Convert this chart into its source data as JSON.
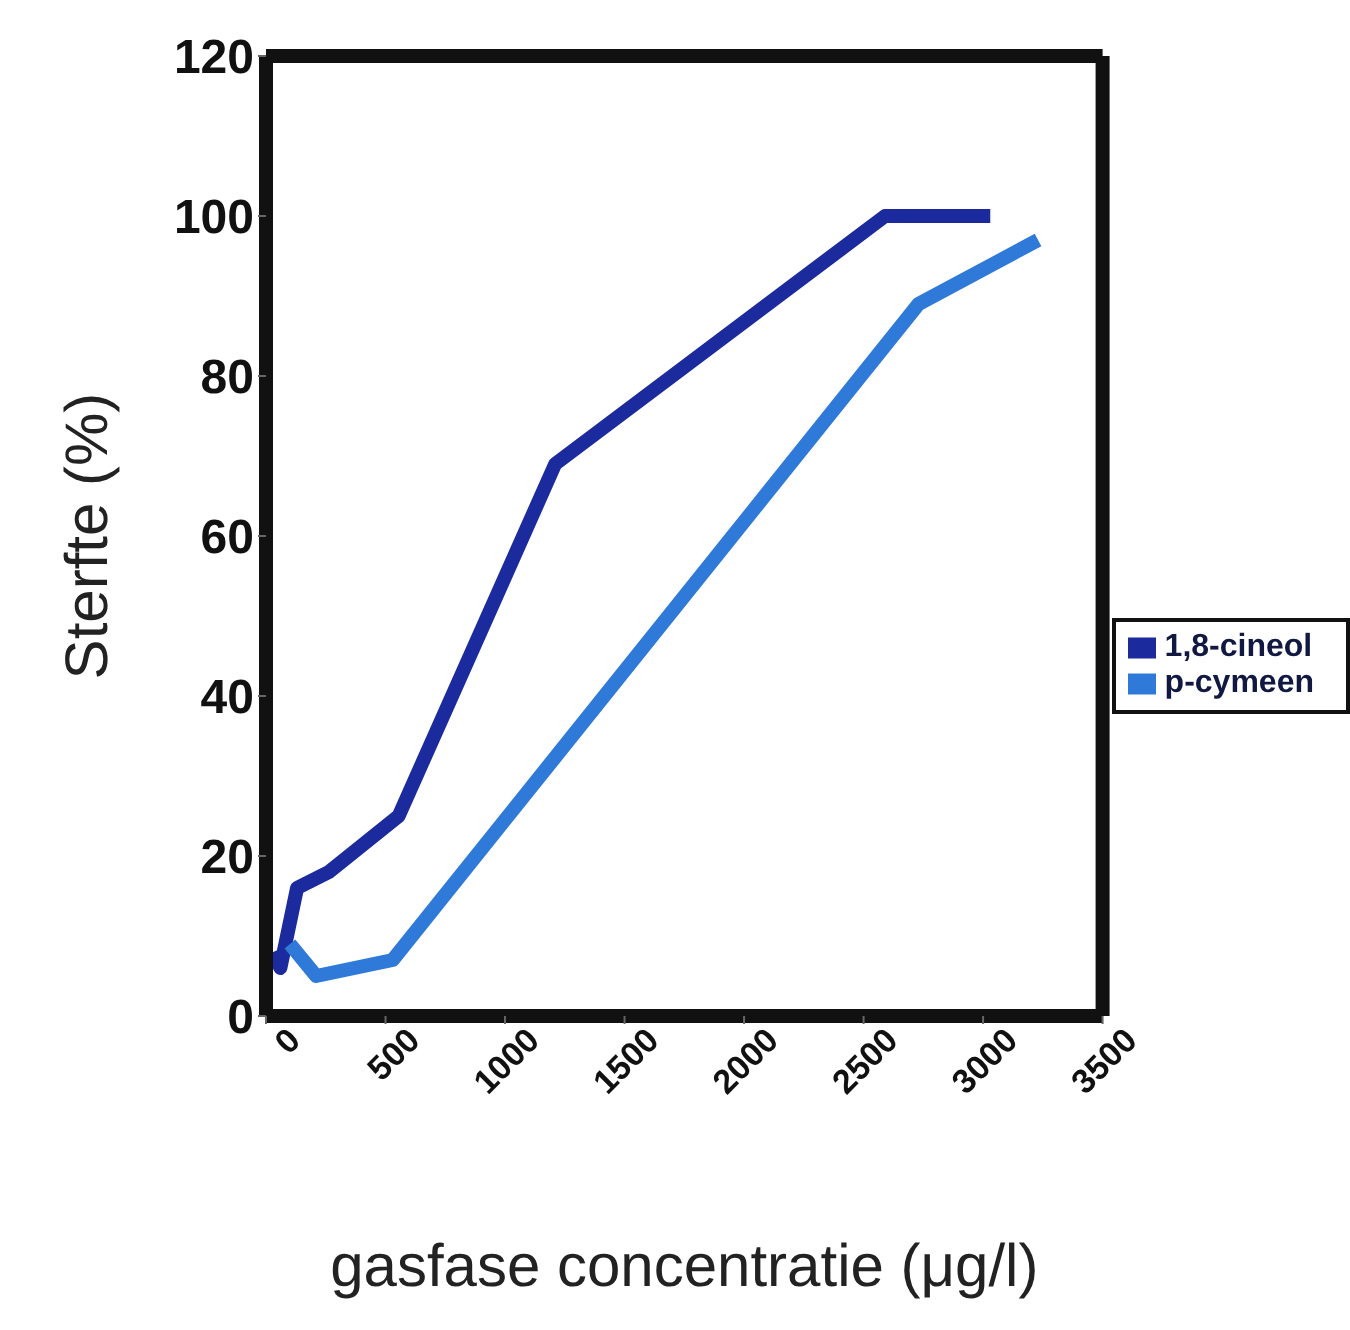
{
  "chart_data": {
    "type": "line",
    "xlabel": "gasfase concentratie (μg/l)",
    "ylabel": "Sterfte (%)",
    "xlim": [
      0,
      3500
    ],
    "xticks": [
      0,
      500,
      1000,
      1500,
      2000,
      2500,
      3000,
      3500
    ],
    "ylim": [
      0,
      120
    ],
    "yticks": [
      0,
      20,
      40,
      60,
      80,
      100,
      120
    ],
    "grid": false,
    "legend": "right",
    "series": [
      {
        "name": "1,8-cineol",
        "color": "#1b2a9c",
        "x": [
          30,
          60,
          130,
          263,
          555,
          1210,
          2590,
          3030
        ],
        "values": [
          8,
          6,
          16,
          18,
          25,
          69,
          100,
          100
        ]
      },
      {
        "name": "p-cymeen",
        "color": "#2f7ad8",
        "x": [
          100,
          210,
          530,
          2730,
          3230
        ],
        "values": [
          9,
          5,
          7,
          89,
          97
        ]
      }
    ]
  }
}
